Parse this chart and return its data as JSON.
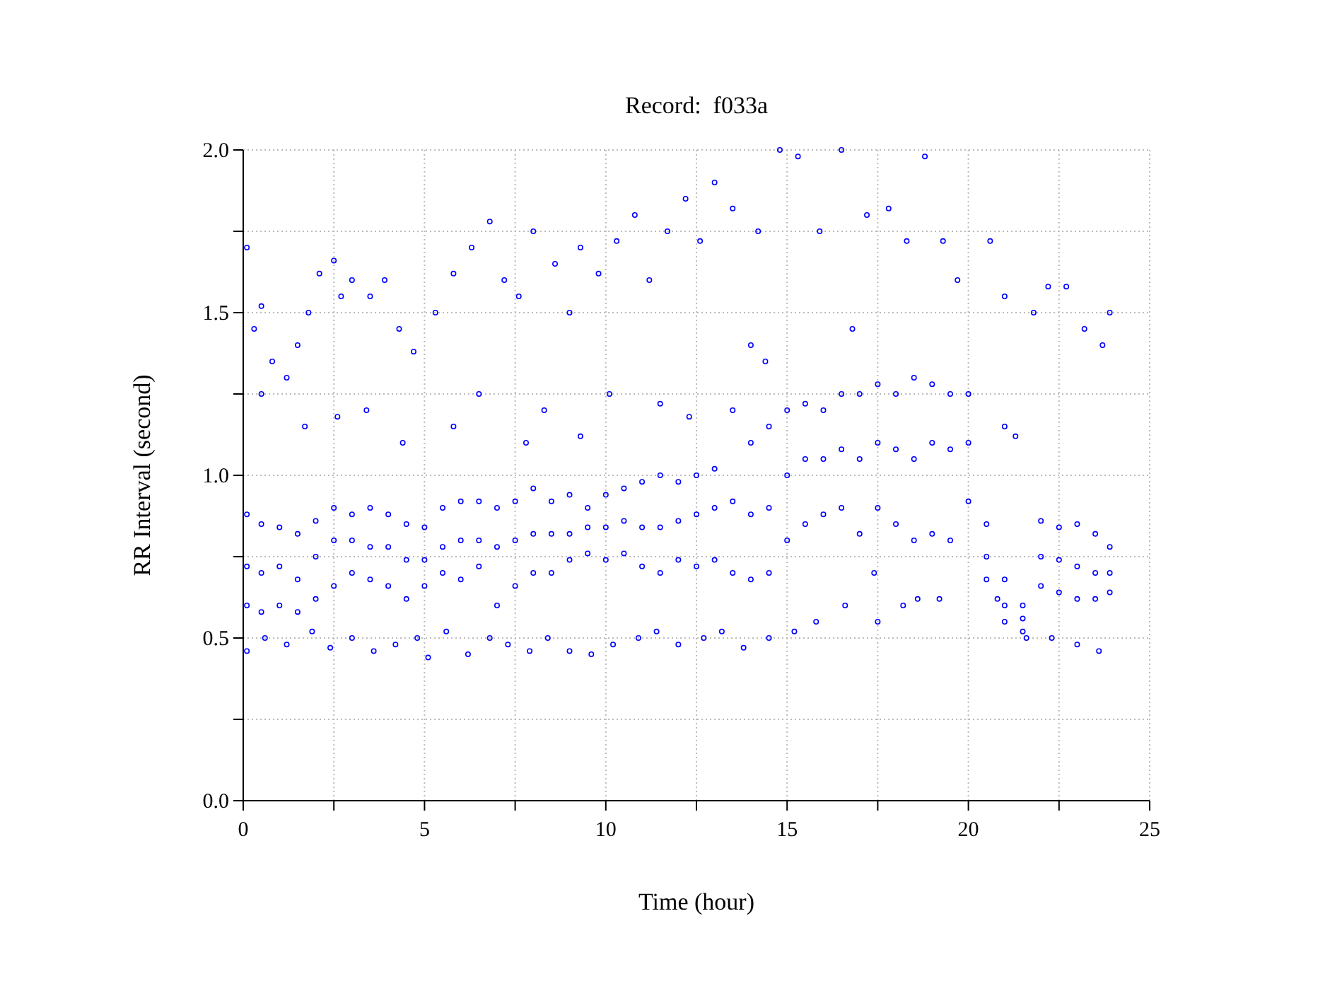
{
  "chart_data": {
    "type": "scatter",
    "title": "Record:  f033a",
    "xlabel": "Time (hour)",
    "ylabel": "RR Interval (second)",
    "xlim": [
      0,
      25
    ],
    "ylim": [
      0,
      2
    ],
    "xticks": [
      0,
      {
        "value": 2.5,
        "label": null
      },
      5,
      {
        "value": 7.5,
        "label": null
      },
      10,
      {
        "value": 12.5,
        "label": null
      },
      15,
      {
        "value": 17.5,
        "label": null
      },
      20,
      {
        "value": 22.5,
        "label": null
      },
      25
    ],
    "yticks": [
      {
        "value": 0,
        "label": "0.0"
      },
      {
        "value": 0.25,
        "label": null
      },
      {
        "value": 0.5,
        "label": "0.5"
      },
      {
        "value": 0.75,
        "label": null
      },
      {
        "value": 1,
        "label": "1.0"
      },
      {
        "value": 1.25,
        "label": null
      },
      {
        "value": 1.5,
        "label": "1.5"
      },
      {
        "value": 1.75,
        "label": null
      },
      {
        "value": 2,
        "label": "2.0"
      }
    ],
    "grid": true,
    "marker": "circle",
    "series": [
      {
        "color": "#0000ff",
        "x": [
          0.1,
          0.1,
          0.1,
          0.5,
          0.5,
          0.5,
          1.0,
          1.0,
          1.0,
          1.5,
          1.5,
          1.5,
          2.0,
          2.0,
          2.0,
          2.5,
          2.5,
          2.5,
          3.0,
          3.0,
          3.0,
          3.5,
          3.5,
          3.5,
          4.0,
          4.0,
          4.0,
          4.5,
          4.5,
          4.5,
          5.0,
          5.0,
          5.0,
          5.5,
          5.5,
          5.5,
          6.0,
          6.0,
          6.0,
          6.5,
          6.5,
          6.5,
          7.0,
          7.0,
          7.0,
          7.5,
          7.5,
          7.5,
          8.0,
          8.0,
          8.0,
          8.5,
          8.5,
          8.5,
          9.0,
          9.0,
          9.0,
          9.5,
          9.5,
          9.5,
          10.0,
          10.0,
          10.0,
          10.5,
          10.5,
          10.5,
          11.0,
          11.0,
          11.0,
          11.5,
          11.5,
          11.5,
          12.0,
          12.0,
          12.0,
          12.5,
          12.5,
          12.5,
          13.0,
          13.0,
          13.0,
          13.5,
          13.5,
          13.5,
          14.0,
          14.0,
          14.0,
          14.5,
          14.5,
          14.5,
          15.0,
          15.0,
          15.0,
          15.5,
          15.5,
          15.5,
          16.0,
          16.0,
          16.0,
          16.5,
          16.5,
          16.5,
          17.0,
          17.0,
          17.0,
          17.5,
          17.5,
          17.5,
          18.0,
          18.0,
          18.0,
          18.5,
          18.5,
          18.5,
          19.0,
          19.0,
          19.0,
          19.5,
          19.5,
          19.5,
          20.0,
          20.0,
          20.0,
          20.5,
          20.5,
          20.5,
          21.0,
          21.0,
          21.0,
          21.5,
          21.5,
          21.5,
          22.0,
          22.0,
          22.0,
          22.5,
          22.5,
          22.5,
          23.0,
          23.0,
          23.0,
          23.5,
          23.5,
          23.5,
          23.9,
          23.9,
          23.9,
          0.1,
          0.3,
          0.5,
          0.8,
          1.2,
          1.5,
          1.8,
          2.1,
          2.5,
          2.7,
          3.0,
          3.5,
          3.9,
          4.3,
          4.7,
          5.3,
          5.8,
          6.3,
          6.8,
          7.2,
          7.6,
          8.0,
          8.6,
          9.0,
          9.3,
          9.8,
          10.3,
          10.8,
          11.2,
          11.7,
          12.2,
          12.6,
          13.0,
          13.5,
          14.2,
          14.8,
          15.3,
          15.9,
          16.5,
          17.2,
          17.8,
          18.3,
          18.8,
          19.3,
          19.7,
          20.6,
          21.0,
          21.8,
          22.2,
          22.7,
          23.2,
          23.7,
          23.9,
          0.5,
          1.7,
          2.6,
          3.4,
          4.4,
          5.8,
          6.5,
          7.8,
          8.3,
          9.3,
          10.1,
          11.5,
          12.3,
          14.0,
          14.4,
          16.8,
          17.4,
          18.2,
          19.2,
          21.0,
          21.3,
          0.1,
          0.6,
          1.2,
          1.9,
          2.4,
          3.0,
          3.6,
          4.2,
          4.8,
          5.1,
          5.6,
          6.2,
          6.8,
          7.3,
          7.9,
          8.4,
          9.0,
          9.6,
          10.2,
          10.9,
          11.4,
          12.0,
          12.7,
          13.2,
          13.8,
          14.5,
          15.2,
          15.8,
          16.6,
          17.5,
          18.6,
          20.8,
          21.6,
          22.3,
          23.0,
          23.6
        ],
        "values": [
          0.6,
          0.72,
          0.88,
          0.58,
          0.7,
          0.85,
          0.6,
          0.72,
          0.84,
          0.58,
          0.68,
          0.82,
          0.62,
          0.75,
          0.86,
          0.66,
          0.8,
          0.9,
          0.7,
          0.8,
          0.88,
          0.68,
          0.78,
          0.9,
          0.66,
          0.78,
          0.88,
          0.62,
          0.74,
          0.85,
          0.66,
          0.74,
          0.84,
          0.7,
          0.78,
          0.9,
          0.68,
          0.8,
          0.92,
          0.72,
          0.8,
          0.92,
          0.6,
          0.78,
          0.9,
          0.66,
          0.8,
          0.92,
          0.7,
          0.82,
          0.96,
          0.7,
          0.82,
          0.92,
          0.74,
          0.82,
          0.94,
          0.76,
          0.84,
          0.9,
          0.74,
          0.84,
          0.94,
          0.76,
          0.86,
          0.96,
          0.72,
          0.84,
          0.98,
          0.7,
          0.84,
          1.0,
          0.74,
          0.86,
          0.98,
          0.72,
          0.88,
          1.0,
          0.74,
          0.9,
          1.02,
          0.7,
          0.92,
          1.2,
          0.68,
          0.88,
          1.1,
          0.7,
          0.9,
          1.15,
          0.8,
          1.0,
          1.2,
          0.85,
          1.05,
          1.22,
          0.88,
          1.05,
          1.2,
          0.9,
          1.08,
          1.25,
          0.82,
          1.05,
          1.25,
          0.9,
          1.1,
          1.28,
          0.85,
          1.08,
          1.25,
          0.8,
          1.05,
          1.3,
          0.82,
          1.1,
          1.28,
          0.8,
          1.08,
          1.25,
          0.92,
          1.1,
          1.25,
          0.68,
          0.75,
          0.85,
          0.55,
          0.6,
          0.68,
          0.52,
          0.56,
          0.6,
          0.66,
          0.75,
          0.86,
          0.64,
          0.74,
          0.84,
          0.62,
          0.72,
          0.85,
          0.62,
          0.7,
          0.82,
          0.64,
          0.7,
          0.78,
          1.7,
          1.45,
          1.52,
          1.35,
          1.3,
          1.4,
          1.5,
          1.62,
          1.66,
          1.55,
          1.6,
          1.55,
          1.6,
          1.45,
          1.38,
          1.5,
          1.62,
          1.7,
          1.78,
          1.6,
          1.55,
          1.75,
          1.65,
          1.5,
          1.7,
          1.62,
          1.72,
          1.8,
          1.6,
          1.75,
          1.85,
          1.72,
          1.9,
          1.82,
          1.75,
          2.0,
          1.98,
          1.75,
          2.0,
          1.8,
          1.82,
          1.72,
          1.98,
          1.72,
          1.6,
          1.72,
          1.55,
          1.5,
          1.58,
          1.58,
          1.45,
          1.4,
          1.5,
          1.25,
          1.15,
          1.18,
          1.2,
          1.1,
          1.15,
          1.25,
          1.1,
          1.2,
          1.12,
          1.25,
          1.22,
          1.18,
          1.4,
          1.35,
          1.45,
          0.7,
          0.6,
          0.62,
          1.15,
          1.12,
          0.46,
          0.5,
          0.48,
          0.52,
          0.47,
          0.5,
          0.46,
          0.48,
          0.5,
          0.44,
          0.52,
          0.45,
          0.5,
          0.48,
          0.46,
          0.5,
          0.46,
          0.45,
          0.48,
          0.5,
          0.52,
          0.48,
          0.5,
          0.52,
          0.47,
          0.5,
          0.52,
          0.55,
          0.6,
          0.55,
          0.62,
          0.62,
          0.5,
          0.5,
          0.48,
          0.46
        ]
      }
    ]
  }
}
